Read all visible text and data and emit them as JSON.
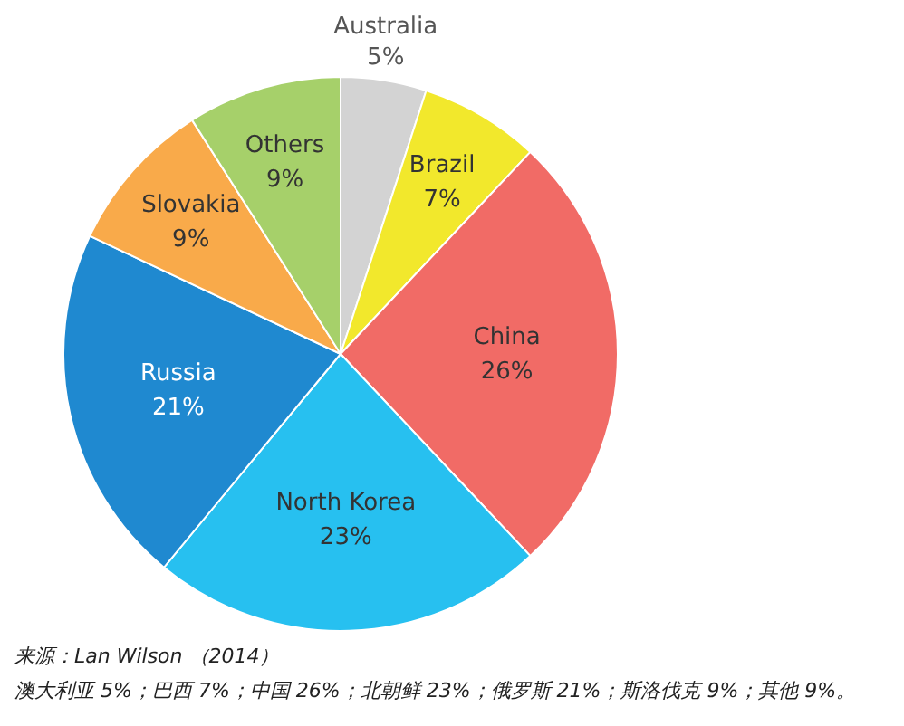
{
  "chart_data": {
    "type": "pie",
    "categories": [
      "Australia",
      "Brazil",
      "China",
      "North Korea",
      "Russia",
      "Slovakia",
      "Others"
    ],
    "values": [
      5,
      7,
      26,
      23,
      21,
      9,
      9
    ],
    "value_labels": [
      "5%",
      "7%",
      "26%",
      "23%",
      "21%",
      "9%",
      "9%"
    ],
    "colors": [
      "#d3d3d3",
      "#f2e82c",
      "#f16b66",
      "#27c0f0",
      "#1f89d0",
      "#f9aa4a",
      "#a6d06a"
    ],
    "legend": false,
    "annotations": [
      "来源：Lan Wilson （2014）",
      "澳大利亚 5%；巴西 7%；中国 26%；北朝鲜 23%；俄罗斯 21%；斯洛伐克 9%；其他 9%。"
    ]
  }
}
